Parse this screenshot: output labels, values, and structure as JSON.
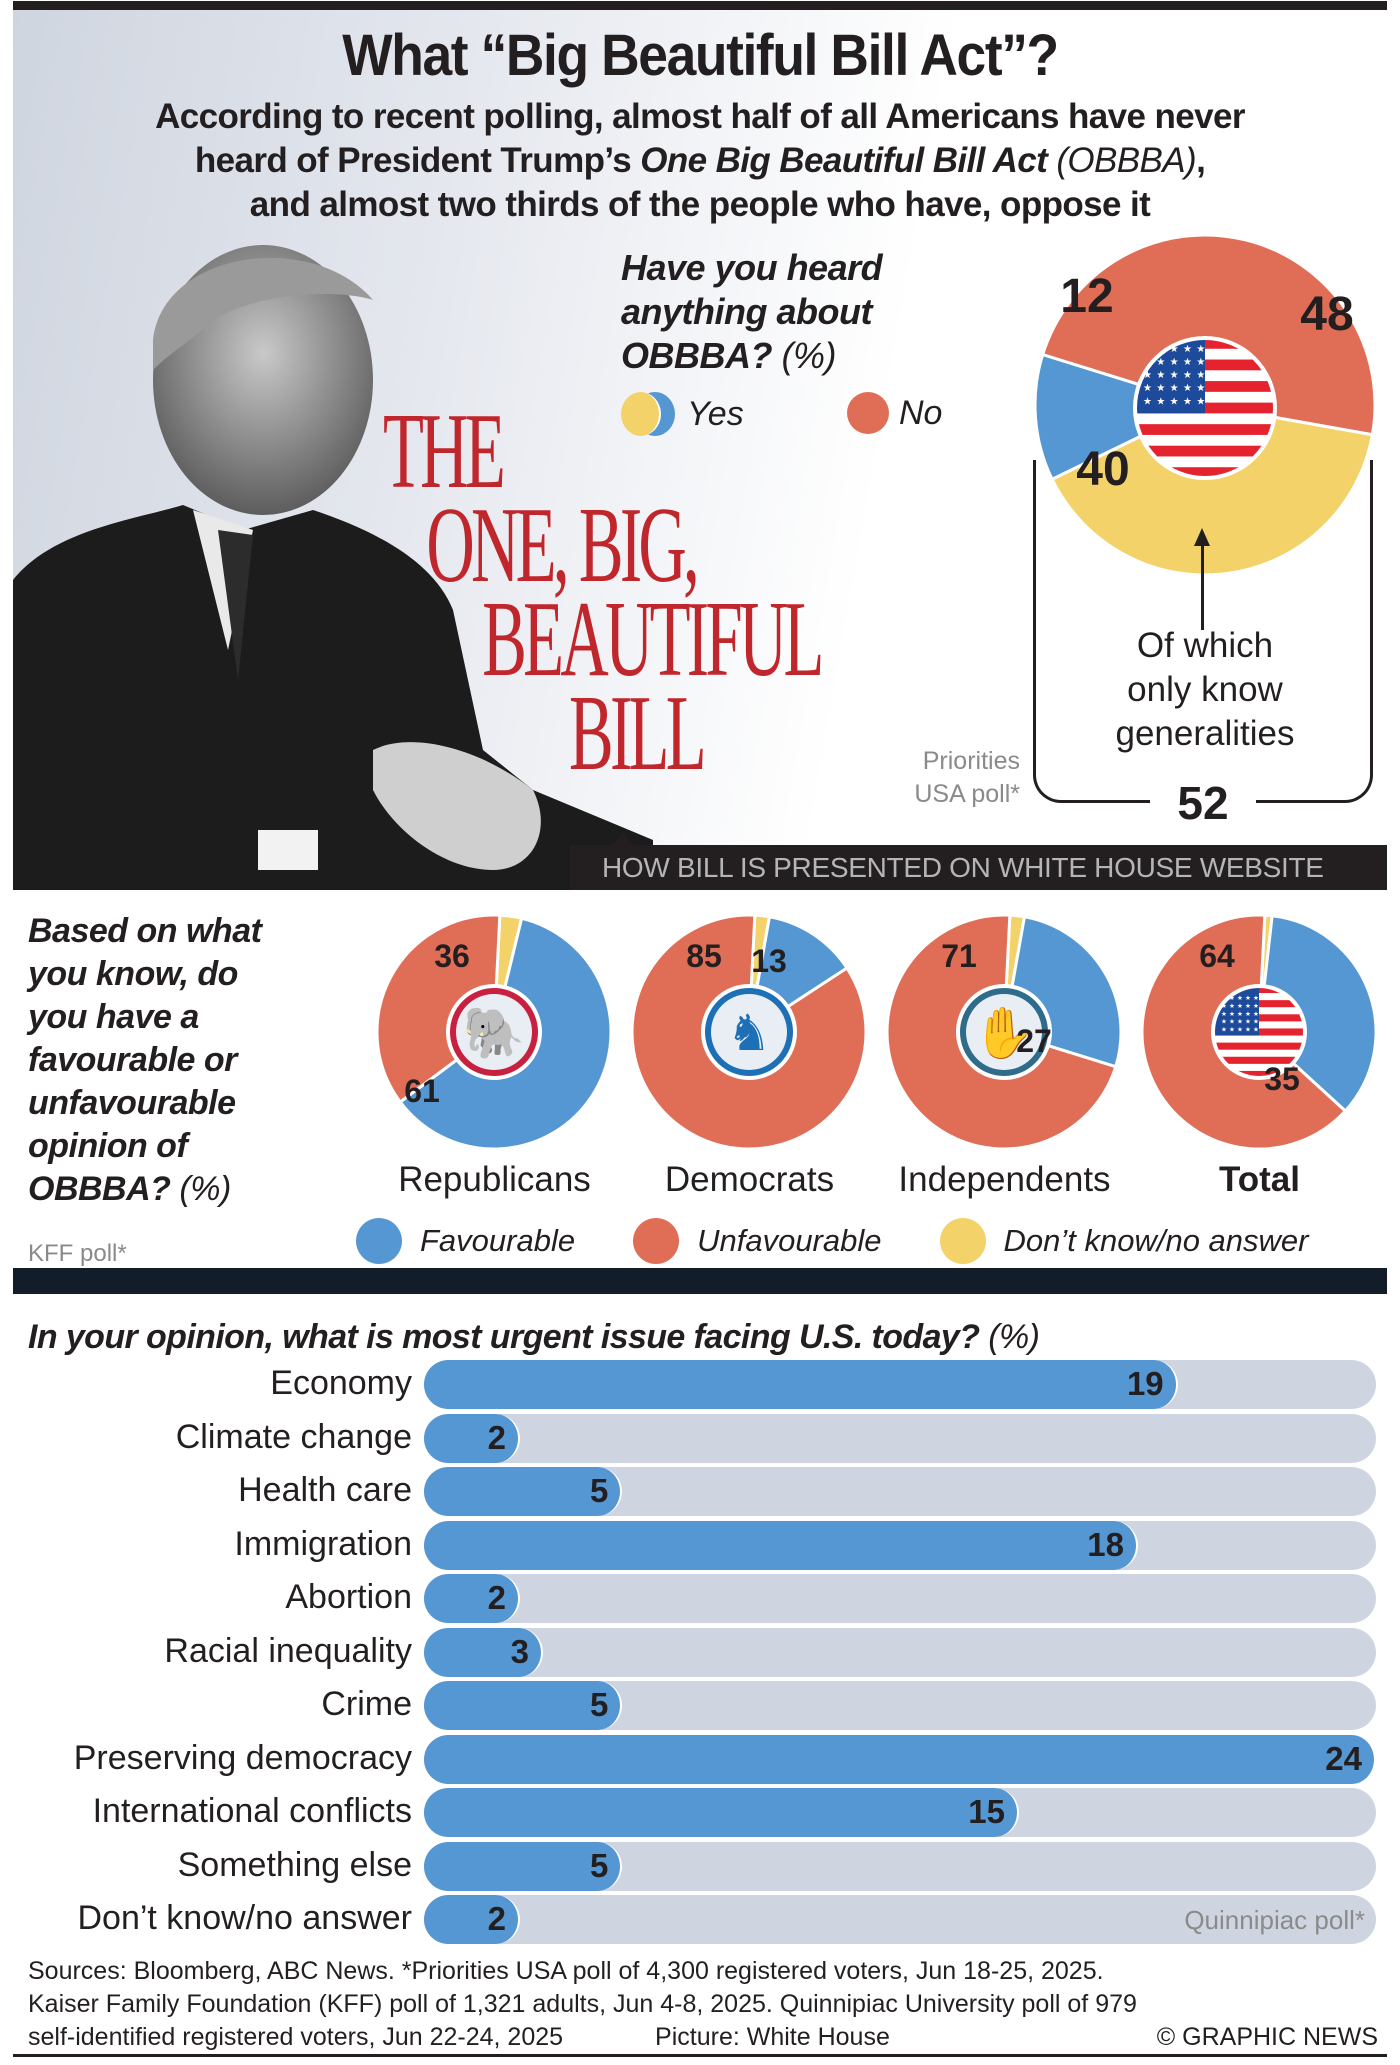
{
  "header": {
    "title": "What “Big Beautiful Bill Act”?",
    "subtitle_line1": "According to recent polling, almost half of all Americans have never",
    "subtitle_line2_pre": "heard of President Trump’s ",
    "subtitle_line2_italic": "One Big Beautiful Bill Act",
    "subtitle_line2_paren": " (OBBBA)",
    "subtitle_line2_post": ",",
    "subtitle_line3": "and almost two thirds of the people who have, oppose it"
  },
  "photo": {
    "description": "Portrait photo of President Trump",
    "headline_lines": [
      "THE",
      "ONE, BIG,",
      "BEAUTIFUL",
      "BILL"
    ],
    "caption": "HOW BILL IS PRESENTED ON WHITE HOUSE WEBSITE",
    "credit_icon": "us-flag-icon"
  },
  "heard": {
    "question_line1": "Have you heard",
    "question_line2": "anything about",
    "question_line3": "OBBBA?",
    "unit": " (%)",
    "legend_yes": "Yes",
    "legend_no": "No",
    "annotation": [
      "Of which",
      "only know",
      "generalities"
    ],
    "yes_total": "52",
    "source": [
      "Priorities",
      "USA poll*"
    ]
  },
  "opinion": {
    "question_lines": [
      "Based on what",
      "you know, do",
      "you have a",
      "favourable or",
      "unfavourable",
      "opinion of"
    ],
    "question_last": "OBBBA?",
    "unit": " (%)",
    "source": "KFF poll*",
    "legend": [
      "Favourable",
      "Unfavourable",
      "Don’t know/no answer"
    ]
  },
  "urgent": {
    "question": "In your opinion, what is most urgent issue facing U.S. today?",
    "unit": " (%)",
    "source": "Quinnipiac poll*"
  },
  "footer": {
    "line1": "Sources: Bloomberg, ABC News. *Priorities USA poll of 4,300 registered voters, Jun 18-25, 2025.",
    "line2": "Kaiser Family Foundation (KFF) poll of 1,321 adults, Jun 4-8, 2025. Quinnipiac University poll of 979",
    "line3": "self-identified registered voters, Jun 22-24, 2025",
    "picture": "Picture: White House",
    "copyright": "© GRAPHIC NEWS"
  },
  "colors": {
    "favourable": "#5597d2",
    "unfavourable": "#e06e56",
    "dont_know": "#f3d26a",
    "track": "#cfd5e0",
    "headline_red": "#c0272d"
  },
  "chart_data": [
    {
      "type": "pie",
      "title": "Have you heard anything about OBBBA? (%)",
      "source": "Priorities USA poll*",
      "slices": [
        {
          "name": "Yes - know details",
          "value": 12,
          "color": "#5597d2"
        },
        {
          "name": "No",
          "value": 48,
          "color": "#e06e56"
        },
        {
          "name": "Yes - only know generalities",
          "value": 40,
          "color": "#f3d26a"
        }
      ],
      "annotation": "Of which only know generalities",
      "yes_total": 52
    },
    {
      "type": "pie",
      "title": "Based on what you know, do you have a favourable or unfavourable opinion of OBBBA? (%)",
      "source": "KFF poll*",
      "legend": [
        "Favourable",
        "Unfavourable",
        "Don’t know/no answer"
      ],
      "groups": [
        {
          "name": "Republicans",
          "icon": "elephant-icon",
          "favourable": 61,
          "unfavourable": 36,
          "dont_know": 3,
          "bold": false
        },
        {
          "name": "Democrats",
          "icon": "donkey-icon",
          "favourable": 13,
          "unfavourable": 85,
          "dont_know": 2,
          "bold": false
        },
        {
          "name": "Independents",
          "icon": "raised-hand-icon",
          "favourable": 27,
          "unfavourable": 71,
          "dont_know": 2,
          "bold": false
        },
        {
          "name": "Total",
          "icon": "us-flag-icon",
          "favourable": 35,
          "unfavourable": 64,
          "dont_know": 1,
          "bold": true
        }
      ]
    },
    {
      "type": "bar",
      "orientation": "horizontal",
      "title": "In your opinion, what is most urgent issue facing U.S. today? (%)",
      "source": "Quinnipiac poll*",
      "categories": [
        "Economy",
        "Climate change",
        "Health care",
        "Immigration",
        "Abortion",
        "Racial inequality",
        "Crime",
        "Preserving democracy",
        "International conflicts",
        "Something else",
        "Don’t know/no answer"
      ],
      "values": [
        19,
        2,
        5,
        18,
        2,
        3,
        5,
        24,
        15,
        5,
        2
      ],
      "xlim": [
        0,
        24
      ]
    }
  ]
}
